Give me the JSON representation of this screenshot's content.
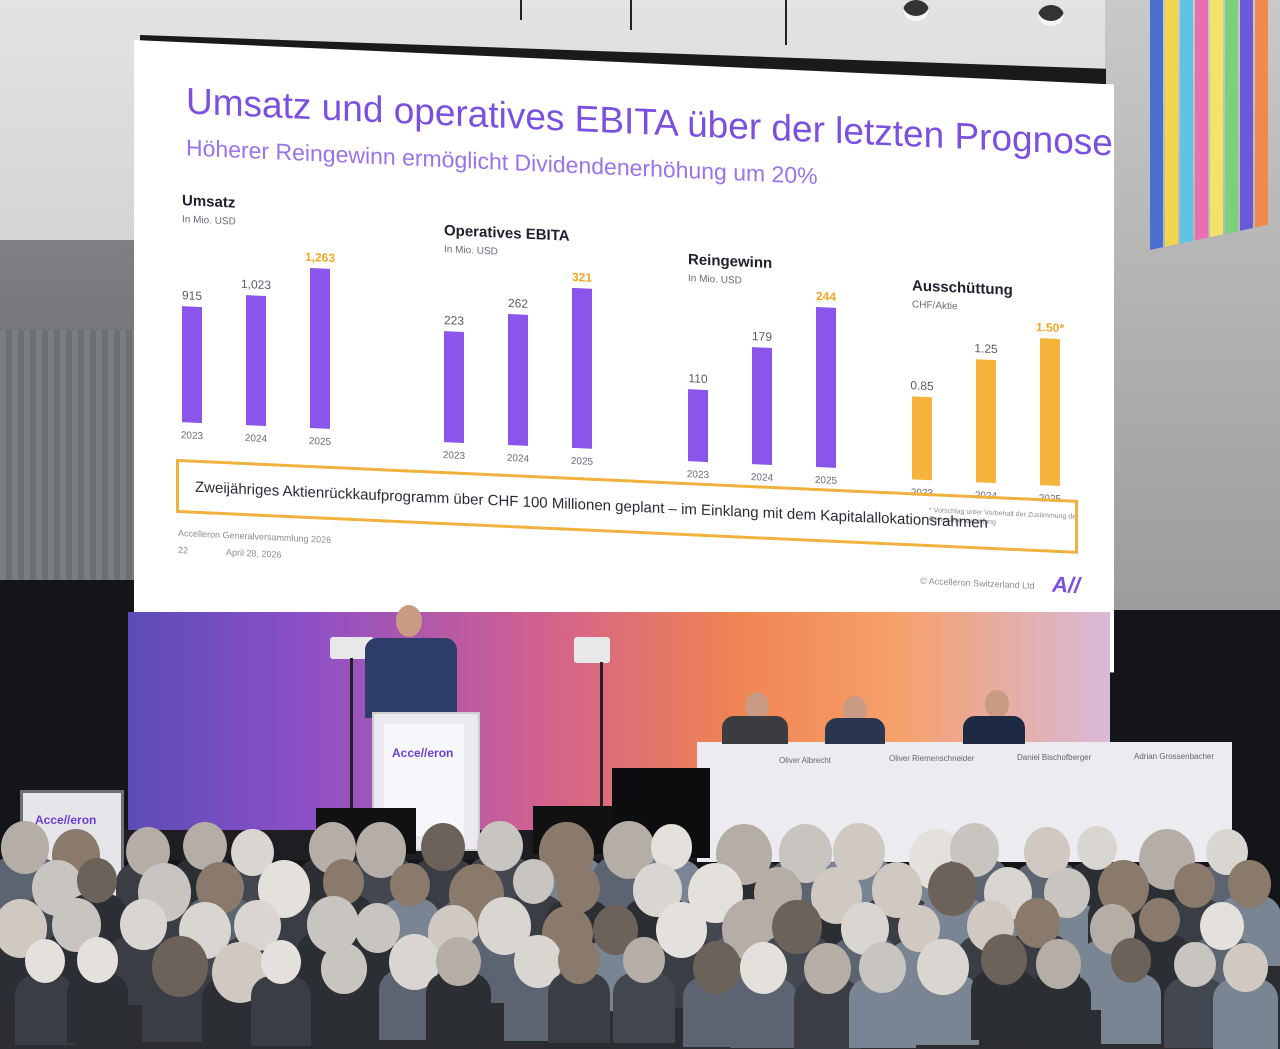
{
  "slide": {
    "title": "Umsatz und operatives EBITA über der letzten Prognose",
    "subtitle": "Höherer Reingewinn ermöglicht Dividendenerhöhung um 20%",
    "callout": "Zweijähriges Aktienrückkaufprogramm über CHF 100 Millionen geplant – im Einklang mit dem Kapitalallokationsrahmen",
    "event_name": "Accelleron Generalversammlung 2026",
    "page_number": "22",
    "date": "April 28, 2026",
    "copyright": "© Accelleron Switzerland Ltd",
    "logo_text": "A//",
    "footnote": "* Vorschlag unter Vorbehalt der Zustimmung der Generalversammlung",
    "colors": {
      "title": "#7b4fe0",
      "bar_purple": "#8a55e8",
      "bar_orange": "#f5b53a",
      "highlight_orange": "#f5a623"
    }
  },
  "chart_data": [
    {
      "type": "bar",
      "title": "Umsatz",
      "unit": "In Mio. USD",
      "categories": [
        "2023",
        "2024",
        "2025"
      ],
      "values": [
        915,
        1023,
        1263
      ],
      "labels": [
        "915",
        "1,023",
        "1,263"
      ],
      "highlight_last": true,
      "color": "purple"
    },
    {
      "type": "bar",
      "title": "Operatives EBITA",
      "unit": "In Mio. USD",
      "categories": [
        "2023",
        "2024",
        "2025"
      ],
      "values": [
        223,
        262,
        321
      ],
      "labels": [
        "223",
        "262",
        "321"
      ],
      "highlight_last": true,
      "color": "purple"
    },
    {
      "type": "bar",
      "title": "Reingewinn",
      "unit": "In Mio. USD",
      "categories": [
        "2023",
        "2024",
        "2025"
      ],
      "values": [
        110,
        179,
        244
      ],
      "labels": [
        "110",
        "179",
        "244"
      ],
      "highlight_last": true,
      "color": "purple"
    },
    {
      "type": "bar",
      "title": "Ausschüttung",
      "unit": "CHF/Aktie",
      "categories": [
        "2023",
        "2024",
        "2025"
      ],
      "values": [
        0.85,
        1.25,
        1.5
      ],
      "labels": [
        "0.85",
        "1.25",
        "1.50*"
      ],
      "highlight_last": true,
      "color": "orange"
    }
  ],
  "stage": {
    "podium_brand": "Acce//eron",
    "side_sign_brand": "Acce//eron",
    "name_cards": [
      "Oliver Albrecht",
      "Oliver Riemenschneider",
      "Daniel Bischofberger",
      "Adrian Grossenbacher"
    ]
  }
}
